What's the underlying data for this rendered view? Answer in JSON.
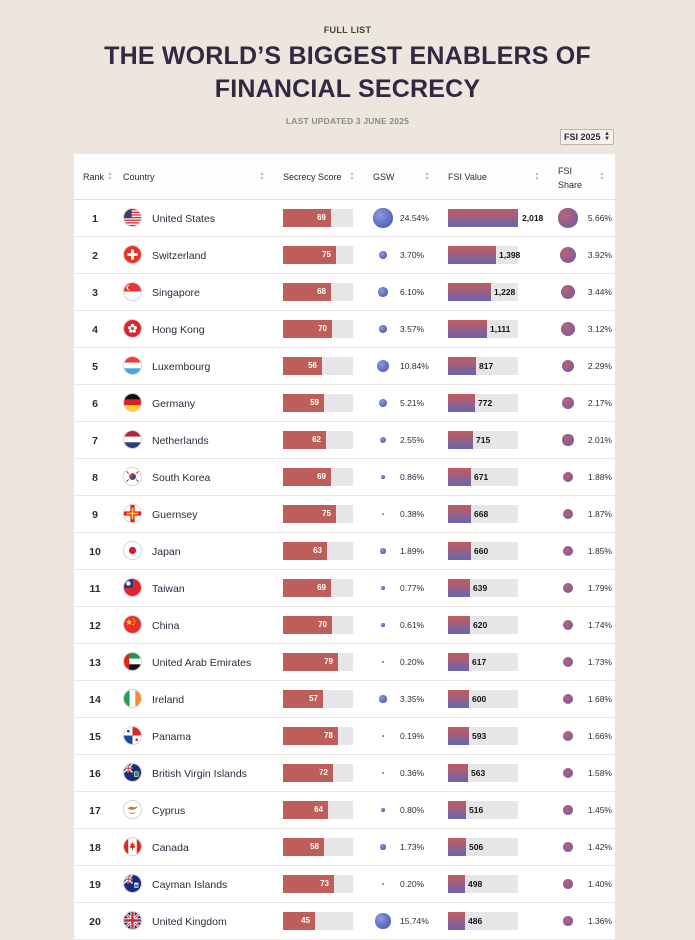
{
  "header": {
    "eyebrow": "FULL LIST",
    "title_line1": "THE WORLD’S BIGGEST ENABLERS OF",
    "title_line2": "FINANCIAL SECRECY",
    "updated": "LAST UPDATED 3 JUNE 2025"
  },
  "edition_select": {
    "value": "FSI 2025"
  },
  "columns": {
    "rank": "Rank",
    "country": "Country",
    "secrecy_score": "Secrecy Score",
    "gsw": "GSW",
    "fsi_value": "FSI Value",
    "fsi_share_1": "FSI",
    "fsi_share_2": "Share"
  },
  "icons": {
    "sort": "sort-arrows-icon",
    "select": "dropdown-arrows-icon",
    "bubble": "bubble-icon"
  },
  "colors": {
    "score_bar": "#bd5e5a",
    "fsi_bar_top": "#c05c5d",
    "fsi_bar_bottom": "#6367b4",
    "bubble": "#6875c8",
    "share_bubble": "#8a5f95"
  },
  "scales": {
    "secrecy_score_max": 100,
    "fsi_value_max": 2018
  },
  "rows": [
    {
      "rank": "1",
      "country": "United States",
      "flag": "us",
      "score": "69",
      "gsw": "24.54%",
      "fsi": "2,018",
      "fsi_num": 2018,
      "share": "5.66%"
    },
    {
      "rank": "2",
      "country": "Switzerland",
      "flag": "ch",
      "score": "75",
      "gsw": "3.70%",
      "fsi": "1,398",
      "fsi_num": 1398,
      "share": "3.92%"
    },
    {
      "rank": "3",
      "country": "Singapore",
      "flag": "sg",
      "score": "68",
      "gsw": "6.10%",
      "fsi": "1,228",
      "fsi_num": 1228,
      "share": "3.44%"
    },
    {
      "rank": "4",
      "country": "Hong Kong",
      "flag": "hk",
      "score": "70",
      "gsw": "3.57%",
      "fsi": "1,111",
      "fsi_num": 1111,
      "share": "3.12%"
    },
    {
      "rank": "5",
      "country": "Luxembourg",
      "flag": "lu",
      "score": "56",
      "gsw": "10.84%",
      "fsi": "817",
      "fsi_num": 817,
      "share": "2.29%"
    },
    {
      "rank": "6",
      "country": "Germany",
      "flag": "de",
      "score": "59",
      "gsw": "5.21%",
      "fsi": "772",
      "fsi_num": 772,
      "share": "2.17%"
    },
    {
      "rank": "7",
      "country": "Netherlands",
      "flag": "nl",
      "score": "62",
      "gsw": "2.55%",
      "fsi": "715",
      "fsi_num": 715,
      "share": "2.01%"
    },
    {
      "rank": "8",
      "country": "South Korea",
      "flag": "kr",
      "score": "69",
      "gsw": "0.86%",
      "fsi": "671",
      "fsi_num": 671,
      "share": "1.88%"
    },
    {
      "rank": "9",
      "country": "Guernsey",
      "flag": "gg",
      "score": "75",
      "gsw": "0.38%",
      "fsi": "668",
      "fsi_num": 668,
      "share": "1.87%"
    },
    {
      "rank": "10",
      "country": "Japan",
      "flag": "jp",
      "score": "63",
      "gsw": "1.89%",
      "fsi": "660",
      "fsi_num": 660,
      "share": "1.85%"
    },
    {
      "rank": "11",
      "country": "Taiwan",
      "flag": "tw",
      "score": "69",
      "gsw": "0.77%",
      "fsi": "639",
      "fsi_num": 639,
      "share": "1.79%"
    },
    {
      "rank": "12",
      "country": "China",
      "flag": "cn",
      "score": "70",
      "gsw": "0.61%",
      "fsi": "620",
      "fsi_num": 620,
      "share": "1.74%"
    },
    {
      "rank": "13",
      "country": "United Arab Emirates",
      "flag": "ae",
      "score": "79",
      "gsw": "0.20%",
      "fsi": "617",
      "fsi_num": 617,
      "share": "1.73%"
    },
    {
      "rank": "14",
      "country": "Ireland",
      "flag": "ie",
      "score": "57",
      "gsw": "3.35%",
      "fsi": "600",
      "fsi_num": 600,
      "share": "1.68%"
    },
    {
      "rank": "15",
      "country": "Panama",
      "flag": "pa",
      "score": "78",
      "gsw": "0.19%",
      "fsi": "593",
      "fsi_num": 593,
      "share": "1.66%"
    },
    {
      "rank": "16",
      "country": "British Virgin Islands",
      "flag": "vg",
      "score": "72",
      "gsw": "0.36%",
      "fsi": "563",
      "fsi_num": 563,
      "share": "1.58%"
    },
    {
      "rank": "17",
      "country": "Cyprus",
      "flag": "cy",
      "score": "64",
      "gsw": "0.80%",
      "fsi": "516",
      "fsi_num": 516,
      "share": "1.45%"
    },
    {
      "rank": "18",
      "country": "Canada",
      "flag": "ca",
      "score": "58",
      "gsw": "1.73%",
      "fsi": "506",
      "fsi_num": 506,
      "share": "1.42%"
    },
    {
      "rank": "19",
      "country": "Cayman Islands",
      "flag": "ky",
      "score": "73",
      "gsw": "0.20%",
      "fsi": "498",
      "fsi_num": 498,
      "share": "1.40%"
    },
    {
      "rank": "20",
      "country": "United Kingdom",
      "flag": "gb",
      "score": "45",
      "gsw": "15.74%",
      "fsi": "486",
      "fsi_num": 486,
      "share": "1.36%"
    }
  ]
}
